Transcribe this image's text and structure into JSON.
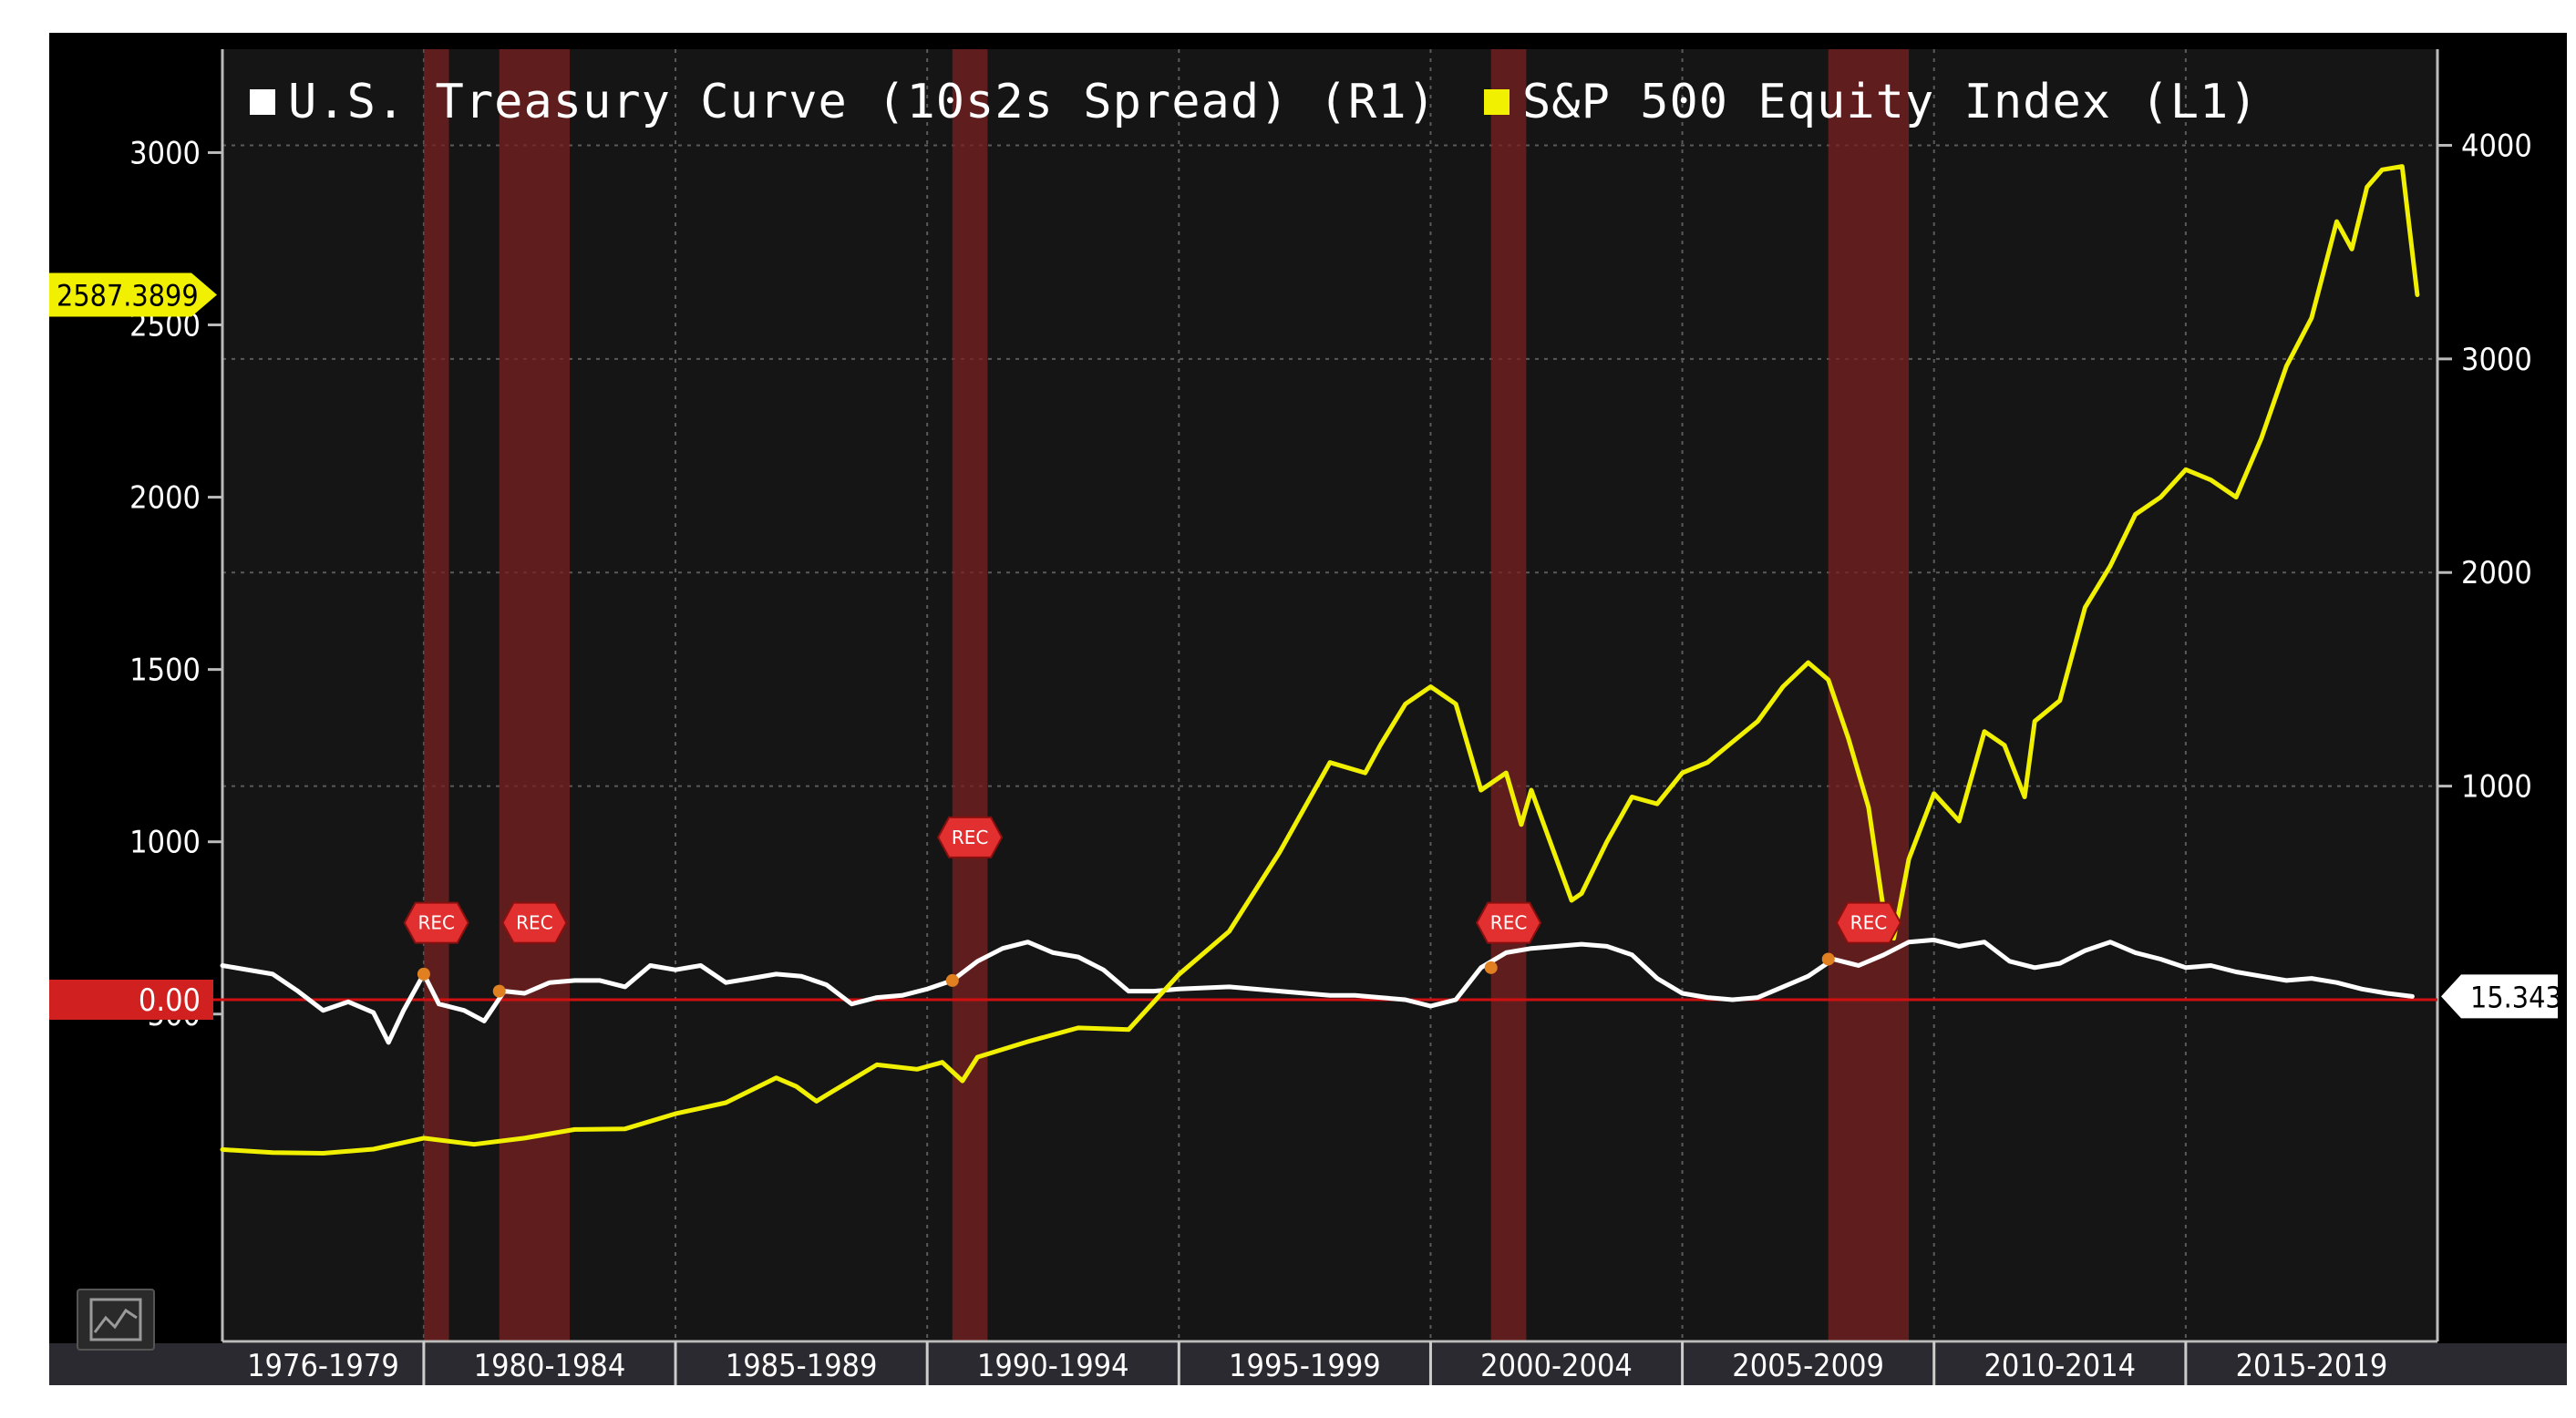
{
  "chart_data": {
    "type": "line",
    "legend_position": "top-left",
    "grid": true,
    "x_labels": [
      "1976-1979",
      "1980-1984",
      "1985-1989",
      "1990-1994",
      "1995-1999",
      "2000-2004",
      "2005-2009",
      "2010-2014",
      "2015-2019"
    ],
    "left_axis": {
      "ticks": [
        500,
        1000,
        1500,
        2000,
        2500,
        3000
      ],
      "ylim": [
        -450,
        3300
      ]
    },
    "right_axis": {
      "ticks": [
        1000,
        2000,
        3000,
        4000
      ],
      "ylim": [
        -1600,
        4450
      ]
    },
    "series": [
      {
        "name": "U.S. Treasury Curve (10s2s Spread) (R1)",
        "axis": "right",
        "color": "#ffffff",
        "last_value_label": "15.343",
        "x": [
          1976.0,
          1977.0,
          1977.5,
          1978.0,
          1978.5,
          1979.0,
          1979.3,
          1979.6,
          1980.0,
          1980.3,
          1980.8,
          1981.2,
          1981.6,
          1982.0,
          1982.5,
          1983.0,
          1983.5,
          1984.0,
          1984.5,
          1985.0,
          1985.5,
          1986.0,
          1986.5,
          1987.0,
          1987.5,
          1988.0,
          1988.5,
          1989.0,
          1989.5,
          1990.0,
          1990.5,
          1991.0,
          1991.5,
          1992.0,
          1992.5,
          1993.0,
          1993.5,
          1994.0,
          1994.5,
          1995.0,
          1996.0,
          1997.0,
          1998.0,
          1998.5,
          1999.0,
          1999.5,
          2000.0,
          2000.5,
          2001.0,
          2001.5,
          2002.0,
          2003.0,
          2003.5,
          2004.0,
          2004.5,
          2005.0,
          2005.5,
          2006.0,
          2006.5,
          2007.0,
          2007.5,
          2008.0,
          2008.5,
          2009.0,
          2009.5,
          2010.0,
          2010.5,
          2011.0,
          2011.5,
          2012.0,
          2012.5,
          2013.0,
          2013.5,
          2014.0,
          2014.5,
          2015.0,
          2015.5,
          2016.0,
          2016.5,
          2017.0,
          2017.5,
          2018.0,
          2018.5,
          2019.0,
          2019.5
        ],
        "values": [
          160,
          120,
          40,
          -50,
          -10,
          -60,
          -200,
          -50,
          120,
          -20,
          -50,
          -100,
          40,
          30,
          80,
          90,
          90,
          60,
          160,
          140,
          160,
          80,
          100,
          120,
          110,
          70,
          -20,
          10,
          20,
          50,
          90,
          180,
          240,
          270,
          220,
          200,
          140,
          40,
          40,
          50,
          60,
          40,
          20,
          20,
          10,
          0,
          -30,
          0,
          150,
          220,
          240,
          260,
          250,
          210,
          100,
          30,
          10,
          0,
          10,
          60,
          110,
          190,
          160,
          210,
          270,
          280,
          250,
          270,
          180,
          150,
          170,
          230,
          270,
          220,
          190,
          150,
          160,
          130,
          110,
          90,
          100,
          80,
          50,
          30,
          15.343
        ]
      },
      {
        "name": "S&P 500 Equity Index (L1)",
        "axis": "left",
        "color": "#f0f000",
        "last_value_label": "2587.3899",
        "x": [
          1976.0,
          1977.0,
          1978.0,
          1979.0,
          1980.0,
          1981.0,
          1982.0,
          1983.0,
          1984.0,
          1985.0,
          1986.0,
          1987.0,
          1987.4,
          1987.8,
          1988.0,
          1989.0,
          1989.8,
          1990.3,
          1990.7,
          1991.0,
          1992.0,
          1993.0,
          1994.0,
          1995.0,
          1996.0,
          1997.0,
          1998.0,
          1998.7,
          1999.0,
          1999.5,
          2000.0,
          2000.5,
          2001.0,
          2001.5,
          2001.8,
          2002.0,
          2002.5,
          2002.8,
          2003.0,
          2003.5,
          2004.0,
          2004.5,
          2005.0,
          2005.5,
          2006.0,
          2006.5,
          2007.0,
          2007.5,
          2007.9,
          2008.3,
          2008.7,
          2009.0,
          2009.2,
          2009.5,
          2010.0,
          2010.5,
          2011.0,
          2011.4,
          2011.8,
          2012.0,
          2012.5,
          2013.0,
          2013.5,
          2014.0,
          2014.5,
          2015.0,
          2015.5,
          2016.0,
          2016.5,
          2017.0,
          2017.5,
          2018.0,
          2018.3,
          2018.6,
          2018.9,
          2019.3,
          2019.6
        ],
        "values": [
          107,
          98,
          96,
          108,
          140,
          122,
          140,
          165,
          167,
          211,
          243,
          315,
          290,
          247,
          265,
          353,
          340,
          360,
          306,
          375,
          420,
          460,
          455,
          615,
          740,
          970,
          1230,
          1200,
          1280,
          1400,
          1450,
          1400,
          1150,
          1200,
          1050,
          1150,
          950,
          830,
          850,
          1000,
          1130,
          1110,
          1200,
          1230,
          1290,
          1350,
          1450,
          1520,
          1470,
          1300,
          1100,
          800,
          720,
          950,
          1140,
          1060,
          1320,
          1280,
          1130,
          1350,
          1410,
          1680,
          1800,
          1950,
          2000,
          2080,
          2050,
          2000,
          2170,
          2380,
          2520,
          2800,
          2720,
          2900,
          2950,
          2960,
          2587.3899
        ]
      }
    ],
    "recessions": [
      {
        "label": "REC",
        "start": 1980.0,
        "end": 1980.5
      },
      {
        "label": "REC",
        "start": 1981.5,
        "end": 1982.9
      },
      {
        "label": "REC",
        "start": 1990.5,
        "end": 1991.2
      },
      {
        "label": "REC",
        "start": 2001.2,
        "end": 2001.9
      },
      {
        "label": "REC",
        "start": 2007.9,
        "end": 2009.5
      }
    ],
    "left_marker": {
      "label": "2587.3899",
      "value": 2587.3899
    },
    "zero_line": {
      "label": "0.00",
      "right_value": 0
    }
  },
  "colors": {
    "background": "#000000",
    "plot_background": "#151515",
    "spx_line": "#f0f000",
    "spread_line": "#ffffff",
    "recession_band": "#7a2020",
    "zero_line": "#d01010",
    "axis_text": "#ffffff"
  },
  "legend": {
    "spread_label": "U.S. Treasury Curve (10s2s Spread) (R1)",
    "spx_label": "S&P 500 Equity Index (L1)"
  },
  "icons": {
    "chart_tool": "line-chart-icon"
  }
}
